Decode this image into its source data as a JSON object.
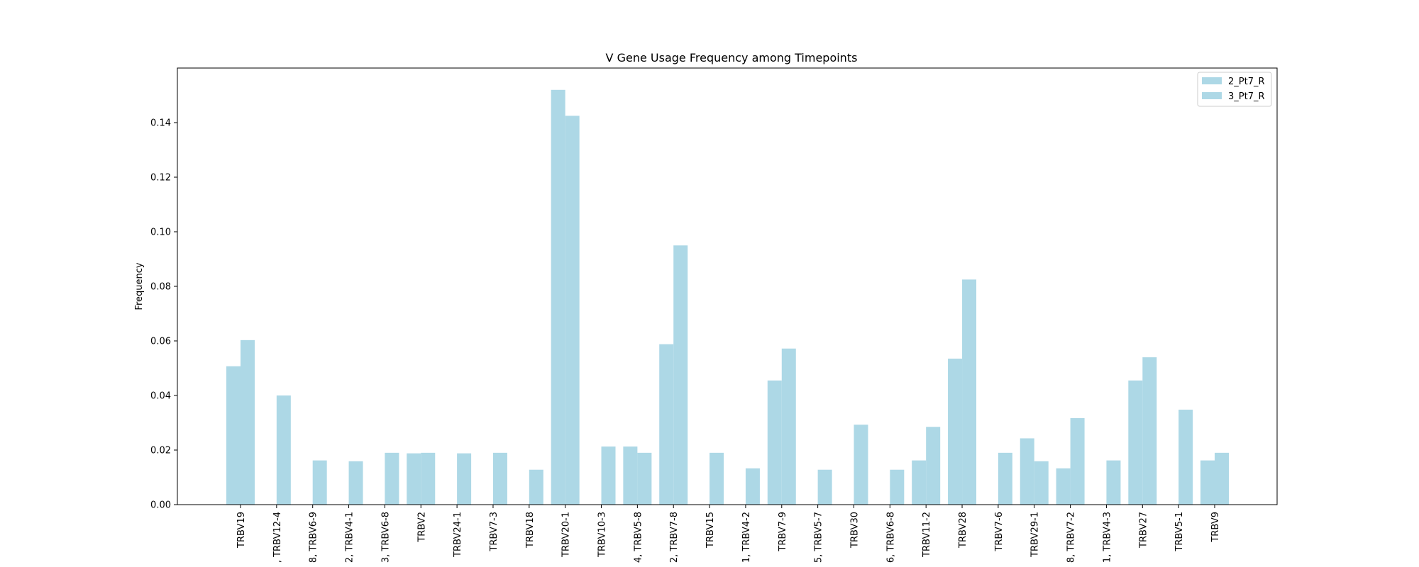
{
  "chart_data": {
    "type": "bar",
    "title": "V Gene Usage Frequency among Timepoints",
    "xlabel": "",
    "ylabel": "Frequency",
    "ylim": [
      0,
      0.16
    ],
    "yticks": [
      "0.00",
      "0.02",
      "0.04",
      "0.06",
      "0.08",
      "0.10",
      "0.12",
      "0.14"
    ],
    "grid": false,
    "legend_position": "top-right",
    "bar_color": "#add8e6",
    "categories": [
      "TRBV19",
      ", TRBV12-4",
      "8, TRBV6-9",
      "2, TRBV4-1",
      "3, TRBV6-8",
      "TRBV2",
      "TRBV24-1",
      "TRBV7-3",
      "TRBV18",
      "TRBV20-1",
      "TRBV10-3",
      "4, TRBV5-8",
      "2, TRBV7-8",
      "TRBV15",
      "1, TRBV4-2",
      "TRBV7-9",
      "5, TRBV5-7",
      "TRBV30",
      "6, TRBV6-8",
      "TRBV11-2",
      "TRBV28",
      "TRBV7-6",
      "TRBV29-1",
      "8, TRBV7-2",
      "1, TRBV4-3",
      "TRBV27",
      "TRBV5-1",
      "TRBV9"
    ],
    "series": [
      {
        "name": "2_Pt7_R",
        "values": [
          0.0507,
          0.0,
          0.0,
          0.0,
          0.0,
          0.0188,
          0.0,
          0.0,
          0.0,
          0.152,
          0.0,
          0.0213,
          0.0588,
          0.0,
          0.0,
          0.0455,
          0.0,
          0.0,
          0.0,
          0.0162,
          0.0535,
          0.0,
          0.0243,
          0.0133,
          0.0,
          0.0455,
          0.0,
          0.0162
        ]
      },
      {
        "name": "3_Pt7_R",
        "values": [
          0.0603,
          0.04,
          0.0162,
          0.0159,
          0.019,
          0.019,
          0.0188,
          0.019,
          0.0128,
          0.1425,
          0.0213,
          0.019,
          0.095,
          0.019,
          0.0133,
          0.0572,
          0.0128,
          0.0293,
          0.0128,
          0.0285,
          0.0825,
          0.019,
          0.0159,
          0.0317,
          0.0162,
          0.054,
          0.0348,
          0.019
        ]
      }
    ]
  }
}
